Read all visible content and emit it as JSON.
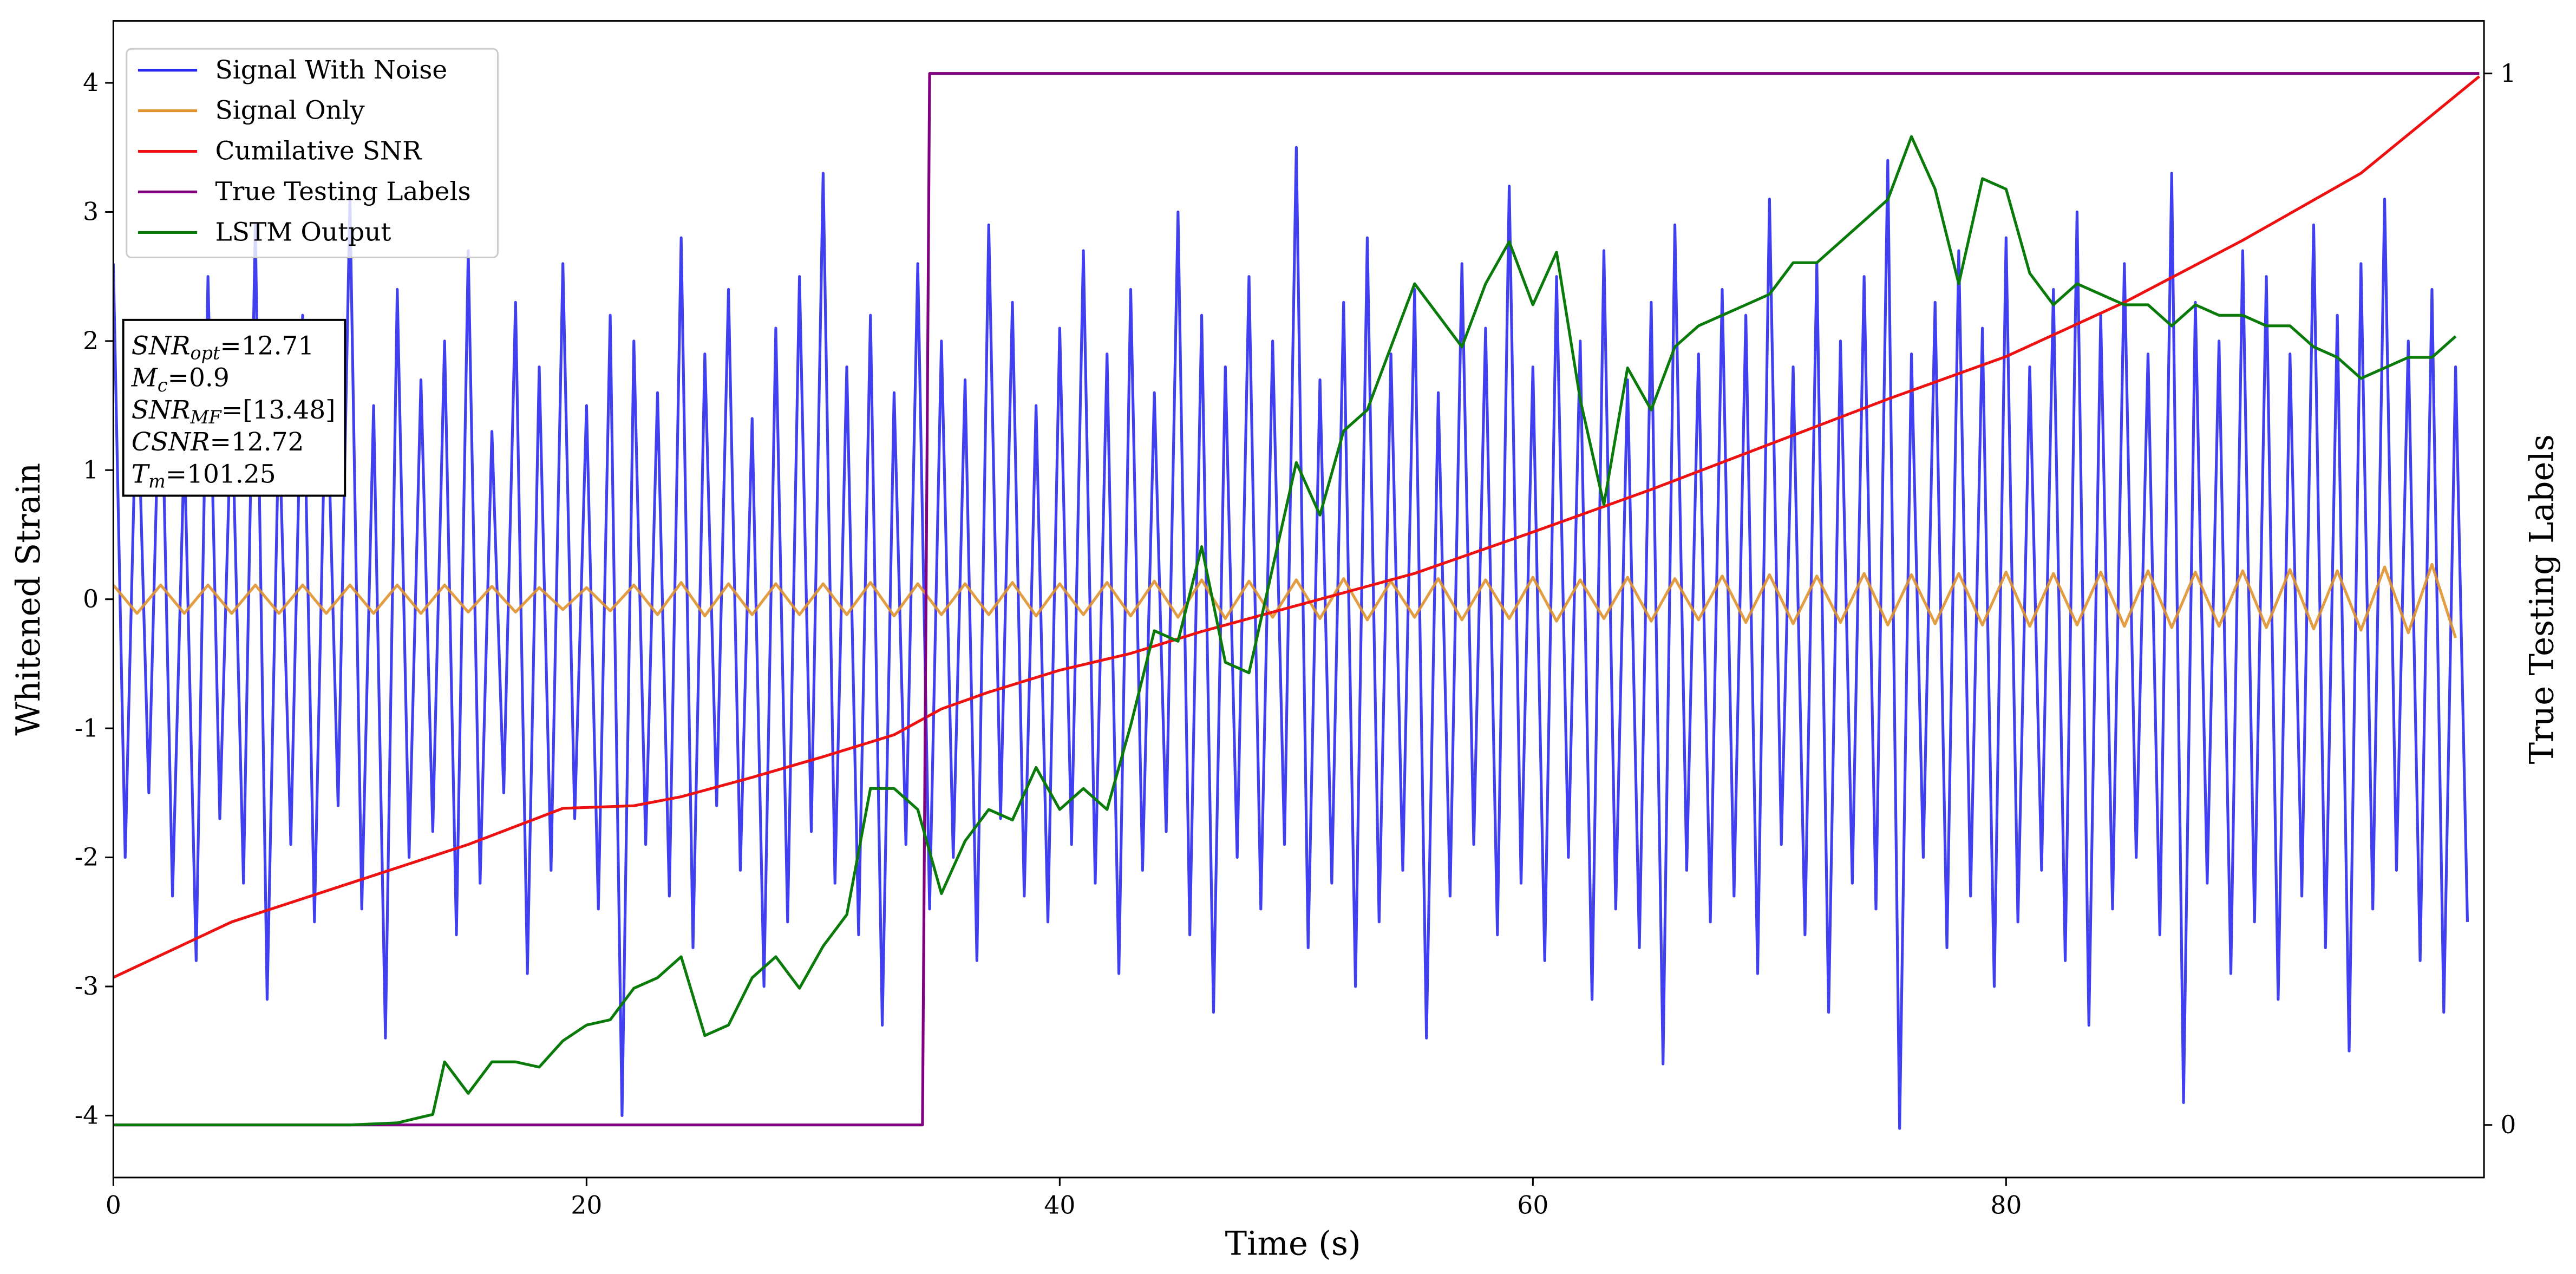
{
  "chart_data": {
    "type": "line",
    "xlabel": "Time (s)",
    "ylabel": "Whitened Strain",
    "y2label": "True Testing Labels",
    "xlim": [
      0,
      100.2
    ],
    "ylim": [
      -4.48,
      4.48
    ],
    "y2lim": [
      -0.05,
      1.05
    ],
    "xticks": [
      0,
      20,
      40,
      60,
      80
    ],
    "yticks": [
      -4,
      -3,
      -2,
      -1,
      0,
      1,
      2,
      3,
      4
    ],
    "y2ticks": [
      0,
      1
    ],
    "legend": "upper left",
    "annotation": [
      {
        "main": "SNR",
        "sub": "opt",
        "rest": "=12.71"
      },
      {
        "main": "M",
        "sub": "c",
        "rest": "=0.9"
      },
      {
        "main": "SNR",
        "sub": "MF",
        "rest": "=[13.48]"
      },
      {
        "main": "CSNR",
        "sub": null,
        "rest": "=12.72"
      },
      {
        "main": "T",
        "sub": "m",
        "rest": "=101.25"
      }
    ],
    "series": [
      {
        "name": "Signal With Noise",
        "color": "#2b2bf0",
        "axis": "y",
        "x": [
          0,
          0.5,
          1,
          1.5,
          2,
          2.5,
          3,
          3.5,
          4,
          4.5,
          5,
          5.5,
          6,
          6.5,
          7,
          7.5,
          8,
          8.5,
          9,
          9.5,
          10,
          10.5,
          11,
          11.5,
          12,
          12.5,
          13,
          13.5,
          14,
          14.5,
          15,
          15.5,
          16,
          16.5,
          17,
          17.5,
          18,
          18.5,
          19,
          19.5,
          20,
          20.5,
          21,
          21.5,
          22,
          22.5,
          23,
          23.5,
          24,
          24.5,
          25,
          25.5,
          26,
          26.5,
          27,
          27.5,
          28,
          28.5,
          29,
          29.5,
          30,
          30.5,
          31,
          31.5,
          32,
          32.5,
          33,
          33.5,
          34,
          34.5,
          35,
          35.5,
          36,
          36.5,
          37,
          37.5,
          38,
          38.5,
          39,
          39.5,
          40,
          40.5,
          41,
          41.5,
          42,
          42.5,
          43,
          43.5,
          44,
          44.5,
          45,
          45.5,
          46,
          46.5,
          47,
          47.5,
          48,
          48.5,
          49,
          49.5,
          50,
          50.5,
          51,
          51.5,
          52,
          52.5,
          53,
          53.5,
          54,
          54.5,
          55,
          55.5,
          56,
          56.5,
          57,
          57.5,
          58,
          58.5,
          59,
          59.5,
          60,
          60.5,
          61,
          61.5,
          62,
          62.5,
          63,
          63.5,
          64,
          64.5,
          65,
          65.5,
          66,
          66.5,
          67,
          67.5,
          68,
          68.5,
          69,
          69.5,
          70,
          70.5,
          71,
          71.5,
          72,
          72.5,
          73,
          73.5,
          74,
          74.5,
          75,
          75.5,
          76,
          76.5,
          77,
          77.5,
          78,
          78.5,
          79,
          79.5,
          80,
          80.5,
          81,
          81.5,
          82,
          82.5,
          83,
          83.5,
          84,
          84.5,
          85,
          85.5,
          86,
          86.5,
          87,
          87.5,
          88,
          88.5,
          89,
          89.5,
          90,
          90.5,
          91,
          91.5,
          92,
          92.5,
          93,
          93.5,
          94,
          94.5,
          95,
          95.5,
          96,
          96.5,
          97,
          97.5,
          98,
          98.5,
          99,
          99.5
        ],
        "values": [
          2.6,
          -2.0,
          1.8,
          -1.5,
          2.1,
          -2.3,
          1.2,
          -2.8,
          2.5,
          -1.7,
          1.6,
          -2.2,
          2.9,
          -3.1,
          1.4,
          -1.9,
          2.2,
          -2.5,
          1.9,
          -1.6,
          3.1,
          -2.4,
          1.5,
          -3.4,
          2.4,
          -2.0,
          1.7,
          -1.8,
          2.0,
          -2.6,
          2.7,
          -2.2,
          1.3,
          -1.5,
          2.3,
          -2.9,
          1.8,
          -2.1,
          2.6,
          -1.7,
          1.5,
          -2.4,
          2.2,
          -4.0,
          2.0,
          -1.9,
          1.6,
          -2.3,
          2.8,
          -2.7,
          1.9,
          -1.6,
          2.4,
          -2.1,
          1.4,
          -3.0,
          2.1,
          -2.5,
          2.5,
          -1.8,
          3.3,
          -2.2,
          1.8,
          -2.6,
          2.2,
          -3.3,
          1.6,
          -1.9,
          2.6,
          -2.4,
          2.0,
          -2.0,
          1.7,
          -2.8,
          2.9,
          -1.7,
          2.3,
          -2.3,
          1.5,
          -2.5,
          2.1,
          -1.9,
          2.7,
          -2.2,
          1.9,
          -2.9,
          2.4,
          -2.1,
          1.6,
          -1.8,
          3.0,
          -2.6,
          2.2,
          -3.2,
          1.8,
          -2.0,
          2.5,
          -2.4,
          2.0,
          -1.9,
          3.5,
          -2.7,
          1.7,
          -2.2,
          2.3,
          -3.0,
          2.8,
          -2.5,
          1.9,
          -2.1,
          2.4,
          -3.4,
          1.6,
          -2.3,
          2.6,
          -1.9,
          2.1,
          -2.6,
          3.2,
          -2.2,
          1.8,
          -2.8,
          2.5,
          -2.0,
          2.0,
          -3.1,
          2.7,
          -2.4,
          1.7,
          -2.7,
          2.3,
          -3.6,
          2.9,
          -2.1,
          1.9,
          -2.5,
          2.4,
          -2.3,
          2.2,
          -2.9,
          3.1,
          -1.9,
          1.8,
          -2.6,
          2.6,
          -3.2,
          2.0,
          -2.2,
          2.5,
          -2.4,
          3.4,
          -4.1,
          1.9,
          -2.0,
          2.3,
          -2.7,
          2.7,
          -2.3,
          2.1,
          -3.0,
          2.8,
          -2.5,
          1.8,
          -2.1,
          2.4,
          -2.8,
          3.0,
          -3.3,
          2.2,
          -2.4,
          2.6,
          -2.0,
          1.9,
          -2.6,
          3.3,
          -3.9,
          2.3,
          -2.2,
          2.0,
          -2.9,
          2.7,
          -2.5,
          2.5,
          -3.1,
          1.9,
          -2.3,
          2.9,
          -2.7,
          2.2,
          -3.5,
          2.6,
          -2.4,
          3.1,
          -2.1,
          2.0,
          -2.8,
          2.4,
          -3.2,
          1.8,
          -2.5
        ]
      },
      {
        "name": "Signal Only",
        "color": "#e0922e",
        "axis": "y",
        "x": [
          0,
          1,
          2,
          3,
          4,
          5,
          6,
          7,
          8,
          9,
          10,
          11,
          12,
          13,
          14,
          15,
          16,
          17,
          18,
          19,
          20,
          21,
          22,
          23,
          24,
          25,
          26,
          27,
          28,
          29,
          30,
          31,
          32,
          33,
          34,
          35,
          36,
          37,
          38,
          39,
          40,
          41,
          42,
          43,
          44,
          45,
          46,
          47,
          48,
          49,
          50,
          51,
          52,
          53,
          54,
          55,
          56,
          57,
          58,
          59,
          60,
          61,
          62,
          63,
          64,
          65,
          66,
          67,
          68,
          69,
          70,
          71,
          72,
          73,
          74,
          75,
          76,
          77,
          78,
          79,
          80,
          81,
          82,
          83,
          84,
          85,
          86,
          87,
          88,
          89,
          90,
          91,
          92,
          93,
          94,
          95,
          96,
          97,
          98,
          99
        ],
        "values": [
          0.11,
          -0.11,
          0.11,
          -0.11,
          0.11,
          -0.11,
          0.11,
          -0.11,
          0.11,
          -0.11,
          0.11,
          -0.11,
          0.11,
          -0.11,
          0.11,
          -0.1,
          0.1,
          -0.1,
          0.09,
          -0.08,
          0.09,
          -0.09,
          0.11,
          -0.12,
          0.13,
          -0.13,
          0.12,
          -0.12,
          0.12,
          -0.12,
          0.12,
          -0.12,
          0.13,
          -0.13,
          0.12,
          -0.12,
          0.12,
          -0.12,
          0.13,
          -0.13,
          0.12,
          -0.12,
          0.13,
          -0.13,
          0.14,
          -0.14,
          0.15,
          -0.15,
          0.14,
          -0.14,
          0.15,
          -0.15,
          0.16,
          -0.16,
          0.14,
          -0.14,
          0.16,
          -0.16,
          0.15,
          -0.15,
          0.17,
          -0.17,
          0.15,
          -0.15,
          0.17,
          -0.17,
          0.16,
          -0.16,
          0.18,
          -0.18,
          0.19,
          -0.19,
          0.18,
          -0.18,
          0.2,
          -0.2,
          0.19,
          -0.19,
          0.2,
          -0.2,
          0.21,
          -0.21,
          0.2,
          -0.2,
          0.21,
          -0.21,
          0.22,
          -0.22,
          0.21,
          -0.21,
          0.22,
          -0.22,
          0.23,
          -0.23,
          0.22,
          -0.24,
          0.25,
          -0.26,
          0.27,
          -0.3
        ]
      },
      {
        "name": "Cumilative SNR",
        "color": "#ee1111",
        "axis": "y",
        "x": [
          0,
          5,
          10,
          15,
          19,
          22,
          24,
          27,
          30,
          33,
          35,
          37,
          40,
          43,
          46,
          50,
          55,
          60,
          65,
          70,
          75,
          80,
          85,
          90,
          95,
          100
        ],
        "values": [
          -2.93,
          -2.5,
          -2.2,
          -1.9,
          -1.62,
          -1.6,
          -1.53,
          -1.38,
          -1.22,
          -1.05,
          -0.85,
          -0.72,
          -0.55,
          -0.42,
          -0.25,
          -0.05,
          0.2,
          0.52,
          0.85,
          1.2,
          1.55,
          1.88,
          2.3,
          2.78,
          3.3,
          4.05
        ]
      },
      {
        "name": "True Testing Labels",
        "color": "#800080",
        "axis": "y2",
        "x": [
          0,
          34.2,
          34.5,
          100
        ],
        "values": [
          0,
          0,
          1,
          1
        ]
      },
      {
        "name": "LSTM Output",
        "color": "#0a7a0a",
        "axis": "y2",
        "x": [
          0,
          10,
          12,
          13.5,
          14,
          15,
          16,
          17,
          18,
          19,
          20,
          21,
          22,
          23,
          24,
          25,
          26,
          27,
          28,
          29,
          30,
          31,
          32,
          33,
          34,
          35,
          36,
          37,
          38,
          39,
          40,
          41,
          42,
          43,
          44,
          45,
          46,
          47,
          48,
          49,
          50,
          51,
          52,
          53,
          54,
          55,
          56,
          57,
          58,
          59,
          60,
          61,
          62,
          63,
          64,
          65,
          66,
          67,
          68,
          69,
          70,
          71,
          72,
          73,
          74,
          75,
          76,
          77,
          78,
          79,
          80,
          81,
          82,
          83,
          84,
          85,
          86,
          87,
          88,
          89,
          90,
          91,
          92,
          93,
          94,
          95,
          96,
          97,
          98,
          99
        ],
        "values": [
          0,
          0,
          0.002,
          0.01,
          0.06,
          0.03,
          0.06,
          0.06,
          0.055,
          0.08,
          0.095,
          0.1,
          0.13,
          0.14,
          0.16,
          0.085,
          0.095,
          0.14,
          0.16,
          0.13,
          0.17,
          0.2,
          0.32,
          0.32,
          0.3,
          0.22,
          0.27,
          0.3,
          0.29,
          0.34,
          0.3,
          0.32,
          0.3,
          0.38,
          0.47,
          0.46,
          0.55,
          0.44,
          0.43,
          0.53,
          0.63,
          0.58,
          0.66,
          0.68,
          0.74,
          0.8,
          0.77,
          0.74,
          0.8,
          0.84,
          0.78,
          0.83,
          0.69,
          0.59,
          0.72,
          0.68,
          0.74,
          0.76,
          0.77,
          0.78,
          0.79,
          0.82,
          0.82,
          0.84,
          0.86,
          0.88,
          0.94,
          0.89,
          0.8,
          0.9,
          0.89,
          0.81,
          0.78,
          0.8,
          0.79,
          0.78,
          0.78,
          0.76,
          0.78,
          0.77,
          0.77,
          0.76,
          0.76,
          0.74,
          0.73,
          0.71,
          0.72,
          0.73,
          0.73,
          0.75
        ]
      }
    ]
  }
}
